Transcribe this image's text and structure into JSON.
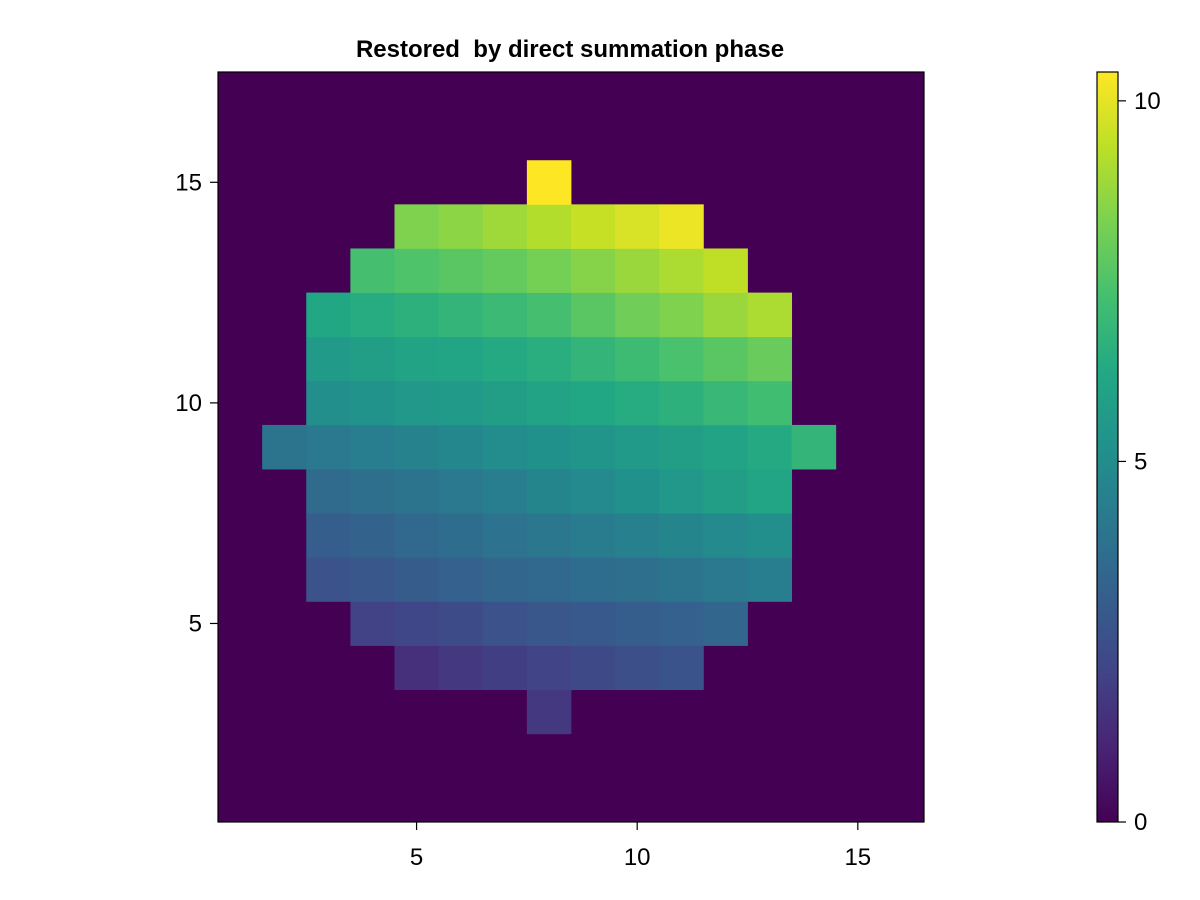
{
  "chart_data": {
    "type": "heatmap",
    "title": "Restored  by direct summation phase",
    "xlabel": "",
    "ylabel": "",
    "x_range": [
      0.5,
      16.5
    ],
    "y_range": [
      0.5,
      17.5
    ],
    "xticks": [
      5,
      10,
      15
    ],
    "yticks": [
      5,
      10,
      15
    ],
    "colormap": "viridis",
    "colorbar": {
      "range": [
        0,
        10.4
      ],
      "ticks": [
        0,
        5,
        10
      ]
    },
    "background_value": 0,
    "grid": false,
    "cells": [
      {
        "y": 3,
        "x_start": 8,
        "values": [
          1.7
        ]
      },
      {
        "y": 4,
        "x_start": 5,
        "values": [
          1.4,
          1.7,
          1.9,
          2.1,
          2.3,
          2.5,
          2.7
        ]
      },
      {
        "y": 5,
        "x_start": 4,
        "values": [
          2.0,
          2.2,
          2.4,
          2.6,
          2.8,
          2.9,
          3.1,
          3.2,
          3.4
        ]
      },
      {
        "y": 6,
        "x_start": 3,
        "values": [
          2.6,
          2.8,
          3.0,
          3.2,
          3.4,
          3.5,
          3.7,
          3.8,
          4.0,
          4.2,
          4.4
        ]
      },
      {
        "y": 7,
        "x_start": 3,
        "values": [
          3.1,
          3.3,
          3.5,
          3.7,
          3.9,
          4.1,
          4.3,
          4.5,
          4.7,
          4.9,
          5.1
        ]
      },
      {
        "y": 8,
        "x_start": 3,
        "values": [
          3.6,
          3.8,
          4.0,
          4.2,
          4.4,
          4.7,
          4.9,
          5.2,
          5.5,
          5.8,
          6.1
        ]
      },
      {
        "y": 9,
        "x_start": 2,
        "values": [
          4.0,
          4.2,
          4.4,
          4.6,
          4.8,
          5.0,
          5.2,
          5.4,
          5.6,
          5.8,
          6.0,
          6.3,
          6.8
        ]
      },
      {
        "y": 10,
        "x_start": 3,
        "values": [
          5.1,
          5.3,
          5.5,
          5.6,
          5.8,
          6.0,
          6.2,
          6.4,
          6.6,
          6.9,
          7.2
        ]
      },
      {
        "y": 11,
        "x_start": 3,
        "values": [
          5.6,
          5.8,
          6.0,
          6.1,
          6.3,
          6.5,
          6.8,
          7.1,
          7.4,
          7.7,
          8.0
        ]
      },
      {
        "y": 12,
        "x_start": 3,
        "values": [
          6.2,
          6.4,
          6.6,
          6.8,
          7.0,
          7.3,
          7.7,
          8.1,
          8.4,
          8.8,
          9.1
        ]
      },
      {
        "y": 13,
        "x_start": 4,
        "values": [
          7.3,
          7.5,
          7.7,
          7.9,
          8.2,
          8.5,
          8.8,
          9.1,
          9.4
        ]
      },
      {
        "y": 14,
        "x_start": 5,
        "values": [
          8.4,
          8.6,
          8.9,
          9.2,
          9.5,
          9.8,
          10.1
        ]
      },
      {
        "y": 15,
        "x_start": 8,
        "values": [
          10.4
        ]
      }
    ]
  }
}
